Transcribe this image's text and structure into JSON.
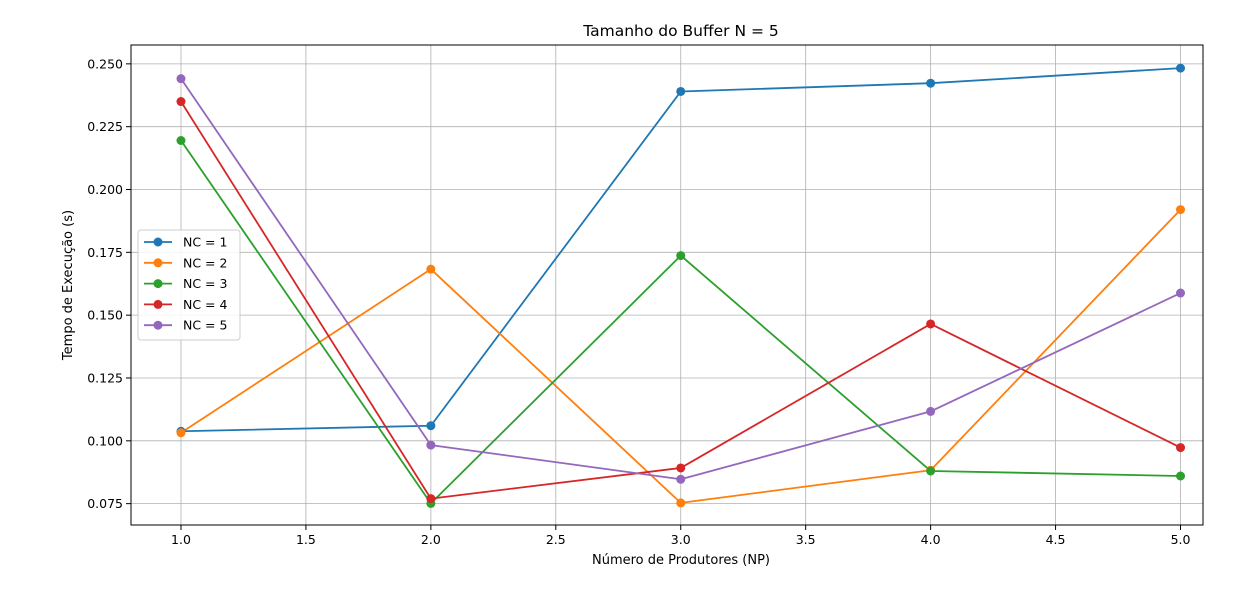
{
  "chart_data": {
    "type": "line",
    "title": "Tamanho do Buffer N = 5",
    "xlabel": "Número de Produtores (NP)",
    "ylabel": "Tempo de Execução (s)",
    "xlim": [
      0.8,
      5.09
    ],
    "ylim": [
      0.0665,
      0.2575
    ],
    "xticks": [
      1.0,
      1.5,
      2.0,
      2.5,
      3.0,
      3.5,
      4.0,
      4.5,
      5.0
    ],
    "xtick_labels": [
      "1.0",
      "1.5",
      "2.0",
      "2.5",
      "3.0",
      "3.5",
      "4.0",
      "4.5",
      "5.0"
    ],
    "yticks": [
      0.075,
      0.1,
      0.125,
      0.15,
      0.175,
      0.2,
      0.225,
      0.25
    ],
    "ytick_labels": [
      "0.075",
      "0.100",
      "0.125",
      "0.150",
      "0.175",
      "0.200",
      "0.225",
      "0.250"
    ],
    "grid": true,
    "legend_position": "center-left",
    "x": [
      1,
      2,
      3,
      4,
      5
    ],
    "series": [
      {
        "name": "NC = 1",
        "color": "#1f77b4",
        "values": [
          0.1038,
          0.106,
          0.239,
          0.2423,
          0.2483
        ]
      },
      {
        "name": "NC = 2",
        "color": "#ff7f0e",
        "values": [
          0.1032,
          0.1683,
          0.0753,
          0.0883,
          0.192
        ]
      },
      {
        "name": "NC = 3",
        "color": "#2ca02c",
        "values": [
          0.2195,
          0.0751,
          0.1737,
          0.088,
          0.086
        ]
      },
      {
        "name": "NC = 4",
        "color": "#d62728",
        "values": [
          0.235,
          0.077,
          0.0892,
          0.1465,
          0.0973
        ]
      },
      {
        "name": "NC = 5",
        "color": "#9467bd",
        "values": [
          0.2441,
          0.0983,
          0.0847,
          0.1117,
          0.1588
        ]
      }
    ]
  }
}
